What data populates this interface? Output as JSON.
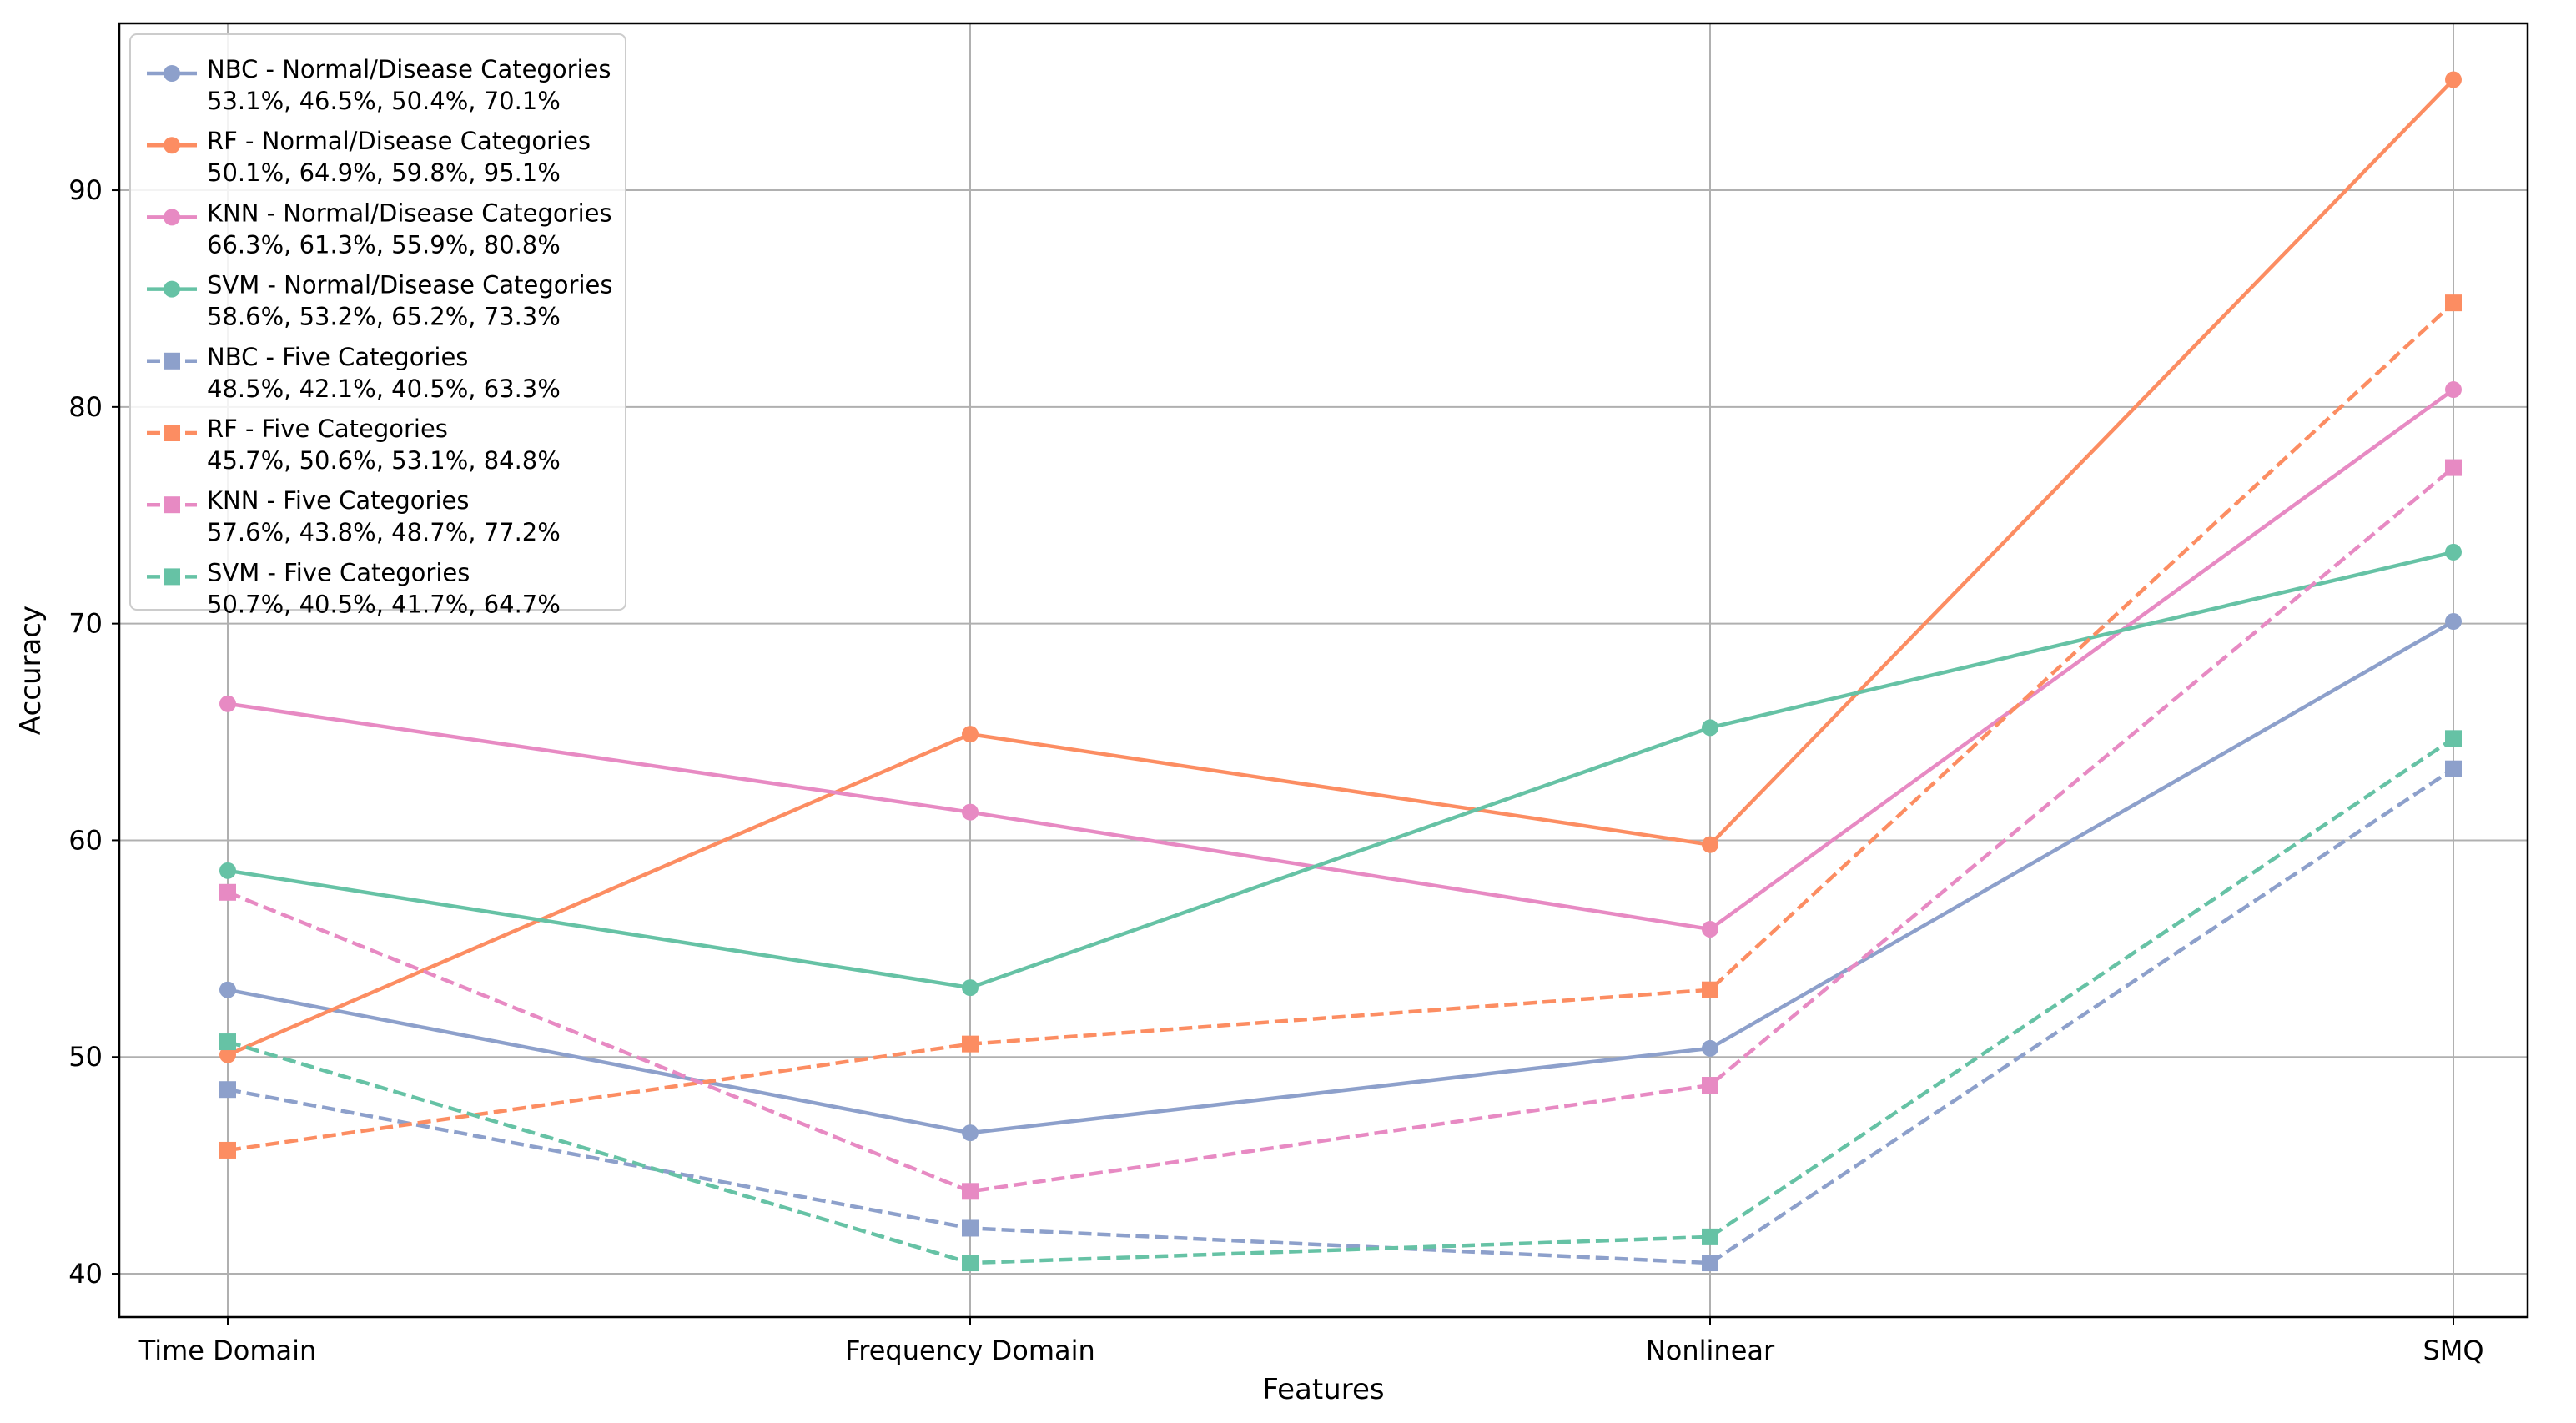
{
  "chart_data": {
    "type": "line",
    "title": "",
    "xlabel": "Features",
    "ylabel": "Accuracy",
    "categories": [
      "Time Domain",
      "Frequency Domain",
      "Nonlinear",
      "SMQ"
    ],
    "ylim": [
      38,
      97.7
    ],
    "yticks": [
      40,
      50,
      60,
      70,
      80,
      90
    ],
    "grid": true,
    "legend_position": "upper-left",
    "series": [
      {
        "name": "NBC - Normal/Disease Categories",
        "values_label": "53.1%, 46.5%, 50.4%, 70.1%",
        "values": [
          53.1,
          46.5,
          50.4,
          70.1
        ],
        "color": "#8da0cb",
        "marker": "circle",
        "dashed": false
      },
      {
        "name": "RF - Normal/Disease Categories",
        "values_label": "50.1%, 64.9%, 59.8%, 95.1%",
        "values": [
          50.1,
          64.9,
          59.8,
          95.1
        ],
        "color": "#fc8d62",
        "marker": "circle",
        "dashed": false
      },
      {
        "name": "KNN - Normal/Disease Categories",
        "values_label": "66.3%, 61.3%, 55.9%, 80.8%",
        "values": [
          66.3,
          61.3,
          55.9,
          80.8
        ],
        "color": "#e78ac3",
        "marker": "circle",
        "dashed": false
      },
      {
        "name": "SVM - Normal/Disease Categories",
        "values_label": "58.6%, 53.2%, 65.2%, 73.3%",
        "values": [
          58.6,
          53.2,
          65.2,
          73.3
        ],
        "color": "#66c2a5",
        "marker": "circle",
        "dashed": false
      },
      {
        "name": "NBC - Five Categories",
        "values_label": "48.5%, 42.1%, 40.5%, 63.3%",
        "values": [
          48.5,
          42.1,
          40.5,
          63.3
        ],
        "color": "#8da0cb",
        "marker": "square",
        "dashed": true
      },
      {
        "name": "RF - Five Categories",
        "values_label": "45.7%, 50.6%, 53.1%, 84.8%",
        "values": [
          45.7,
          50.6,
          53.1,
          84.8
        ],
        "color": "#fc8d62",
        "marker": "square",
        "dashed": true
      },
      {
        "name": "KNN - Five Categories",
        "values_label": "57.6%, 43.8%, 48.7%, 77.2%",
        "values": [
          57.6,
          43.8,
          48.7,
          77.2
        ],
        "color": "#e78ac3",
        "marker": "square",
        "dashed": true
      },
      {
        "name": "SVM - Five Categories",
        "values_label": "50.7%, 40.5%, 41.7%, 64.7%",
        "values": [
          50.7,
          40.5,
          41.7,
          64.7
        ],
        "color": "#66c2a5",
        "marker": "square",
        "dashed": true
      }
    ]
  }
}
